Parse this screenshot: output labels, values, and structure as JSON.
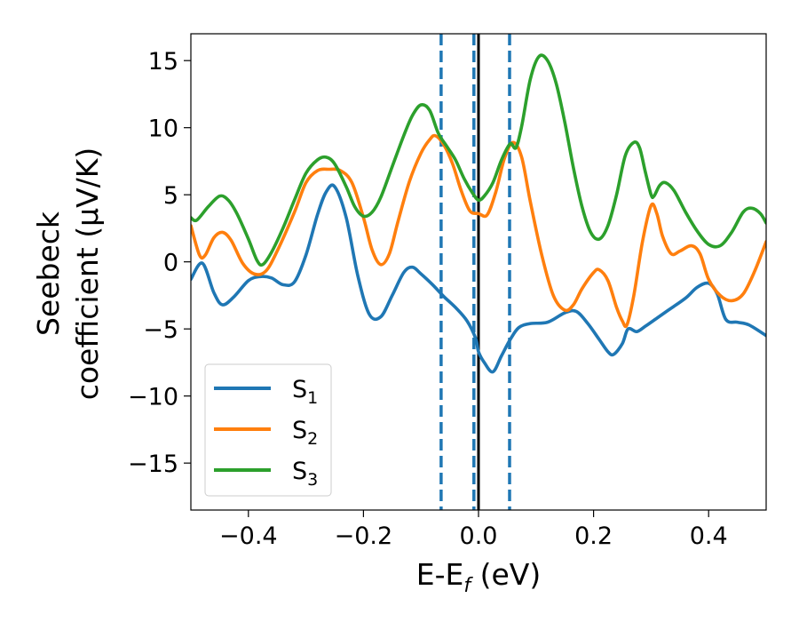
{
  "chart_data": {
    "type": "line",
    "title": "",
    "xlabel": "E-E_f (eV)",
    "xlabel_parts": [
      "E-E",
      "f",
      " (eV)"
    ],
    "ylabel_lines": [
      "Seebeck",
      "coefficient  (μV/K)"
    ],
    "xlim": [
      -0.5,
      0.5
    ],
    "ylim": [
      -18.5,
      17.0
    ],
    "xticks": [
      -0.4,
      -0.2,
      0.0,
      0.2,
      0.4
    ],
    "xtick_labels": [
      "−0.4",
      "−0.2",
      "0.0",
      "0.2",
      "0.4"
    ],
    "yticks": [
      -15,
      -10,
      -5,
      0,
      5,
      10,
      15
    ],
    "ytick_labels": [
      "−15",
      "−10",
      "−5",
      "0",
      "5",
      "10",
      "15"
    ],
    "grid": false,
    "legend_position": "lower-left",
    "vlines": [
      {
        "x": -0.065,
        "style": "dashed",
        "color": "#1f77b4"
      },
      {
        "x": -0.008,
        "style": "dashed",
        "color": "#1f77b4"
      },
      {
        "x": 0.0,
        "style": "solid",
        "color": "#000000"
      },
      {
        "x": 0.054,
        "style": "dashed",
        "color": "#1f77b4"
      }
    ],
    "series": [
      {
        "name": "S1",
        "base": "S",
        "sub": "1",
        "color": "#1f77b4",
        "points": [
          [
            -0.5,
            -1.3
          ],
          [
            -0.48,
            -0.1
          ],
          [
            -0.46,
            -2.3
          ],
          [
            -0.445,
            -3.2
          ],
          [
            -0.425,
            -2.6
          ],
          [
            -0.4,
            -1.4
          ],
          [
            -0.38,
            -1.1
          ],
          [
            -0.36,
            -1.2
          ],
          [
            -0.34,
            -1.7
          ],
          [
            -0.32,
            -1.5
          ],
          [
            -0.3,
            0.5
          ],
          [
            -0.28,
            3.5
          ],
          [
            -0.265,
            5.2
          ],
          [
            -0.25,
            5.6
          ],
          [
            -0.23,
            3.3
          ],
          [
            -0.21,
            -1.0
          ],
          [
            -0.19,
            -3.9
          ],
          [
            -0.17,
            -4.1
          ],
          [
            -0.15,
            -2.5
          ],
          [
            -0.13,
            -0.8
          ],
          [
            -0.115,
            -0.4
          ],
          [
            -0.1,
            -0.9
          ],
          [
            -0.08,
            -1.7
          ],
          [
            -0.06,
            -2.6
          ],
          [
            -0.04,
            -3.4
          ],
          [
            -0.02,
            -4.4
          ],
          [
            -0.005,
            -5.7
          ],
          [
            0.0,
            -6.7
          ],
          [
            0.01,
            -7.5
          ],
          [
            0.025,
            -8.2
          ],
          [
            0.04,
            -7.0
          ],
          [
            0.055,
            -5.8
          ],
          [
            0.07,
            -4.9
          ],
          [
            0.09,
            -4.6
          ],
          [
            0.12,
            -4.5
          ],
          [
            0.15,
            -3.8
          ],
          [
            0.17,
            -3.7
          ],
          [
            0.19,
            -4.6
          ],
          [
            0.21,
            -5.8
          ],
          [
            0.225,
            -6.7
          ],
          [
            0.235,
            -6.9
          ],
          [
            0.25,
            -6.1
          ],
          [
            0.26,
            -5.0
          ],
          [
            0.275,
            -5.2
          ],
          [
            0.29,
            -4.8
          ],
          [
            0.31,
            -4.2
          ],
          [
            0.33,
            -3.6
          ],
          [
            0.36,
            -2.7
          ],
          [
            0.38,
            -1.9
          ],
          [
            0.4,
            -1.6
          ],
          [
            0.415,
            -2.4
          ],
          [
            0.43,
            -4.3
          ],
          [
            0.45,
            -4.5
          ],
          [
            0.47,
            -4.7
          ],
          [
            0.5,
            -5.5
          ]
        ]
      },
      {
        "name": "S2",
        "base": "S",
        "sub": "2",
        "color": "#ff7f0e",
        "points": [
          [
            -0.5,
            2.7
          ],
          [
            -0.485,
            0.5
          ],
          [
            -0.475,
            0.5
          ],
          [
            -0.46,
            1.8
          ],
          [
            -0.445,
            2.2
          ],
          [
            -0.43,
            1.6
          ],
          [
            -0.41,
            -0.1
          ],
          [
            -0.39,
            -0.9
          ],
          [
            -0.37,
            -0.7
          ],
          [
            -0.35,
            0.8
          ],
          [
            -0.32,
            3.7
          ],
          [
            -0.3,
            5.9
          ],
          [
            -0.28,
            6.8
          ],
          [
            -0.26,
            6.9
          ],
          [
            -0.24,
            6.8
          ],
          [
            -0.22,
            5.9
          ],
          [
            -0.2,
            3.3
          ],
          [
            -0.185,
            0.9
          ],
          [
            -0.17,
            -0.2
          ],
          [
            -0.155,
            0.6
          ],
          [
            -0.14,
            3.0
          ],
          [
            -0.12,
            6.0
          ],
          [
            -0.1,
            8.1
          ],
          [
            -0.085,
            9.1
          ],
          [
            -0.075,
            9.4
          ],
          [
            -0.06,
            8.7
          ],
          [
            -0.045,
            7.3
          ],
          [
            -0.03,
            5.3
          ],
          [
            -0.015,
            3.8
          ],
          [
            0.0,
            3.6
          ],
          [
            0.015,
            3.5
          ],
          [
            0.03,
            5.2
          ],
          [
            0.045,
            7.7
          ],
          [
            0.06,
            8.9
          ],
          [
            0.075,
            7.8
          ],
          [
            0.09,
            4.5
          ],
          [
            0.11,
            0.5
          ],
          [
            0.13,
            -2.5
          ],
          [
            0.15,
            -3.6
          ],
          [
            0.165,
            -3.2
          ],
          [
            0.18,
            -2.0
          ],
          [
            0.2,
            -0.8
          ],
          [
            0.21,
            -0.6
          ],
          [
            0.225,
            -1.4
          ],
          [
            0.24,
            -3.4
          ],
          [
            0.25,
            -4.4
          ],
          [
            0.258,
            -4.7
          ],
          [
            0.27,
            -2.5
          ],
          [
            0.285,
            1.5
          ],
          [
            0.3,
            4.2
          ],
          [
            0.31,
            3.6
          ],
          [
            0.32,
            1.9
          ],
          [
            0.335,
            0.6
          ],
          [
            0.35,
            0.8
          ],
          [
            0.37,
            1.2
          ],
          [
            0.385,
            0.6
          ],
          [
            0.4,
            -1.3
          ],
          [
            0.42,
            -2.5
          ],
          [
            0.44,
            -2.9
          ],
          [
            0.46,
            -2.4
          ],
          [
            0.48,
            -0.7
          ],
          [
            0.5,
            1.5
          ]
        ]
      },
      {
        "name": "S3",
        "base": "S",
        "sub": "3",
        "color": "#2ca02c",
        "points": [
          [
            -0.5,
            3.3
          ],
          [
            -0.49,
            3.1
          ],
          [
            -0.47,
            4.1
          ],
          [
            -0.45,
            4.9
          ],
          [
            -0.435,
            4.6
          ],
          [
            -0.42,
            3.6
          ],
          [
            -0.4,
            1.7
          ],
          [
            -0.385,
            0.1
          ],
          [
            -0.375,
            -0.2
          ],
          [
            -0.36,
            0.7
          ],
          [
            -0.34,
            2.5
          ],
          [
            -0.32,
            4.6
          ],
          [
            -0.3,
            6.6
          ],
          [
            -0.28,
            7.6
          ],
          [
            -0.265,
            7.8
          ],
          [
            -0.25,
            7.3
          ],
          [
            -0.23,
            5.6
          ],
          [
            -0.215,
            4.1
          ],
          [
            -0.2,
            3.4
          ],
          [
            -0.185,
            3.7
          ],
          [
            -0.17,
            4.8
          ],
          [
            -0.15,
            7.1
          ],
          [
            -0.13,
            9.4
          ],
          [
            -0.115,
            10.9
          ],
          [
            -0.1,
            11.7
          ],
          [
            -0.085,
            11.3
          ],
          [
            -0.07,
            9.6
          ],
          [
            -0.055,
            8.6
          ],
          [
            -0.04,
            7.6
          ],
          [
            -0.025,
            6.2
          ],
          [
            -0.01,
            5.1
          ],
          [
            0.0,
            4.6
          ],
          [
            0.01,
            4.9
          ],
          [
            0.025,
            5.9
          ],
          [
            0.04,
            7.6
          ],
          [
            0.055,
            8.8
          ],
          [
            0.065,
            8.5
          ],
          [
            0.075,
            10.1
          ],
          [
            0.09,
            13.6
          ],
          [
            0.105,
            15.3
          ],
          [
            0.12,
            15.0
          ],
          [
            0.135,
            13.3
          ],
          [
            0.15,
            10.4
          ],
          [
            0.165,
            7.0
          ],
          [
            0.18,
            4.1
          ],
          [
            0.195,
            2.2
          ],
          [
            0.21,
            1.7
          ],
          [
            0.225,
            2.7
          ],
          [
            0.24,
            5.0
          ],
          [
            0.255,
            7.9
          ],
          [
            0.27,
            8.9
          ],
          [
            0.28,
            8.5
          ],
          [
            0.29,
            6.7
          ],
          [
            0.3,
            5.0
          ],
          [
            0.305,
            4.9
          ],
          [
            0.315,
            5.7
          ],
          [
            0.325,
            5.9
          ],
          [
            0.34,
            5.3
          ],
          [
            0.36,
            3.7
          ],
          [
            0.38,
            2.3
          ],
          [
            0.4,
            1.3
          ],
          [
            0.42,
            1.2
          ],
          [
            0.44,
            2.2
          ],
          [
            0.46,
            3.7
          ],
          [
            0.475,
            4.0
          ],
          [
            0.49,
            3.6
          ],
          [
            0.5,
            2.9
          ]
        ]
      }
    ]
  }
}
